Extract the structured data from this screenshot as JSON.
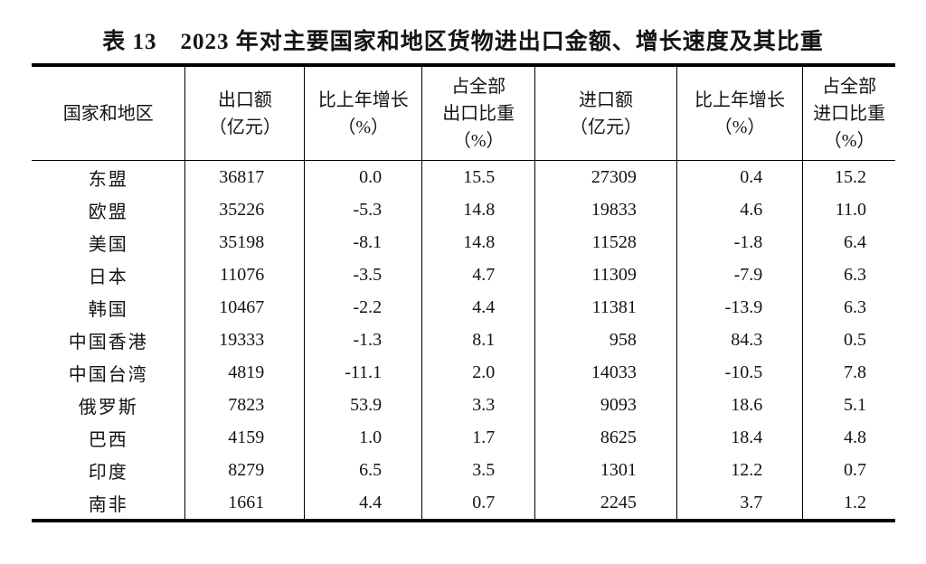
{
  "page": {
    "background": "#ffffff",
    "text_color": "#141414",
    "border_color": "#000000"
  },
  "title": {
    "text": "表 13　2023 年对主要国家和地区货物进出口金额、增长速度及其比重"
  },
  "table": {
    "headers": {
      "region": {
        "l1": "国家和地区"
      },
      "export_value": {
        "l1": "出口额",
        "l2": "（亿元）"
      },
      "export_growth": {
        "l1": "比上年增长",
        "l2": "（%）"
      },
      "export_share": {
        "l1": "占全部",
        "l2": "出口比重",
        "l3": "（%）"
      },
      "import_value": {
        "l1": "进口额",
        "l2": "（亿元）"
      },
      "import_growth": {
        "l1": "比上年增长",
        "l2": "（%）"
      },
      "import_share": {
        "l1": "占全部",
        "l2": "进口比重",
        "l3": "（%）"
      }
    },
    "rows": [
      {
        "region": "东盟",
        "export_value": "36817",
        "export_growth": "0.0",
        "export_share": "15.5",
        "import_value": "27309",
        "import_growth": "0.4",
        "import_share": "15.2"
      },
      {
        "region": "欧盟",
        "export_value": "35226",
        "export_growth": "-5.3",
        "export_share": "14.8",
        "import_value": "19833",
        "import_growth": "4.6",
        "import_share": "11.0"
      },
      {
        "region": "美国",
        "export_value": "35198",
        "export_growth": "-8.1",
        "export_share": "14.8",
        "import_value": "11528",
        "import_growth": "-1.8",
        "import_share": "6.4"
      },
      {
        "region": "日本",
        "export_value": "11076",
        "export_growth": "-3.5",
        "export_share": "4.7",
        "import_value": "11309",
        "import_growth": "-7.9",
        "import_share": "6.3"
      },
      {
        "region": "韩国",
        "export_value": "10467",
        "export_growth": "-2.2",
        "export_share": "4.4",
        "import_value": "11381",
        "import_growth": "-13.9",
        "import_share": "6.3"
      },
      {
        "region": "中国香港",
        "export_value": "19333",
        "export_growth": "-1.3",
        "export_share": "8.1",
        "import_value": "958",
        "import_growth": "84.3",
        "import_share": "0.5"
      },
      {
        "region": "中国台湾",
        "export_value": "4819",
        "export_growth": "-11.1",
        "export_share": "2.0",
        "import_value": "14033",
        "import_growth": "-10.5",
        "import_share": "7.8"
      },
      {
        "region": "俄罗斯",
        "export_value": "7823",
        "export_growth": "53.9",
        "export_share": "3.3",
        "import_value": "9093",
        "import_growth": "18.6",
        "import_share": "5.1"
      },
      {
        "region": "巴西",
        "export_value": "4159",
        "export_growth": "1.0",
        "export_share": "1.7",
        "import_value": "8625",
        "import_growth": "18.4",
        "import_share": "4.8"
      },
      {
        "region": "印度",
        "export_value": "8279",
        "export_growth": "6.5",
        "export_share": "3.5",
        "import_value": "1301",
        "import_growth": "12.2",
        "import_share": "0.7"
      },
      {
        "region": "南非",
        "export_value": "1661",
        "export_growth": "4.4",
        "export_share": "0.7",
        "import_value": "2245",
        "import_growth": "3.7",
        "import_share": "1.2"
      }
    ]
  },
  "chart_data": {
    "type": "table",
    "title": "表 13　2023 年对主要国家和地区货物进出口金额、增长速度及其比重",
    "columns": [
      "国家和地区",
      "出口额（亿元）",
      "比上年增长（%）",
      "占全部出口比重（%）",
      "进口额（亿元）",
      "比上年增长（%）",
      "占全部进口比重（%）"
    ],
    "rows": [
      [
        "东盟",
        36817,
        0.0,
        15.5,
        27309,
        0.4,
        15.2
      ],
      [
        "欧盟",
        35226,
        -5.3,
        14.8,
        19833,
        4.6,
        11.0
      ],
      [
        "美国",
        35198,
        -8.1,
        14.8,
        11528,
        -1.8,
        6.4
      ],
      [
        "日本",
        11076,
        -3.5,
        4.7,
        11309,
        -7.9,
        6.3
      ],
      [
        "韩国",
        10467,
        -2.2,
        4.4,
        11381,
        -13.9,
        6.3
      ],
      [
        "中国香港",
        19333,
        -1.3,
        8.1,
        958,
        84.3,
        0.5
      ],
      [
        "中国台湾",
        4819,
        -11.1,
        2.0,
        14033,
        -10.5,
        7.8
      ],
      [
        "俄罗斯",
        7823,
        53.9,
        3.3,
        9093,
        18.6,
        5.1
      ],
      [
        "巴西",
        4159,
        1.0,
        1.7,
        8625,
        18.4,
        4.8
      ],
      [
        "印度",
        8279,
        6.5,
        3.5,
        1301,
        12.2,
        0.7
      ],
      [
        "南非",
        1661,
        4.4,
        0.7,
        2245,
        3.7,
        1.2
      ]
    ]
  }
}
